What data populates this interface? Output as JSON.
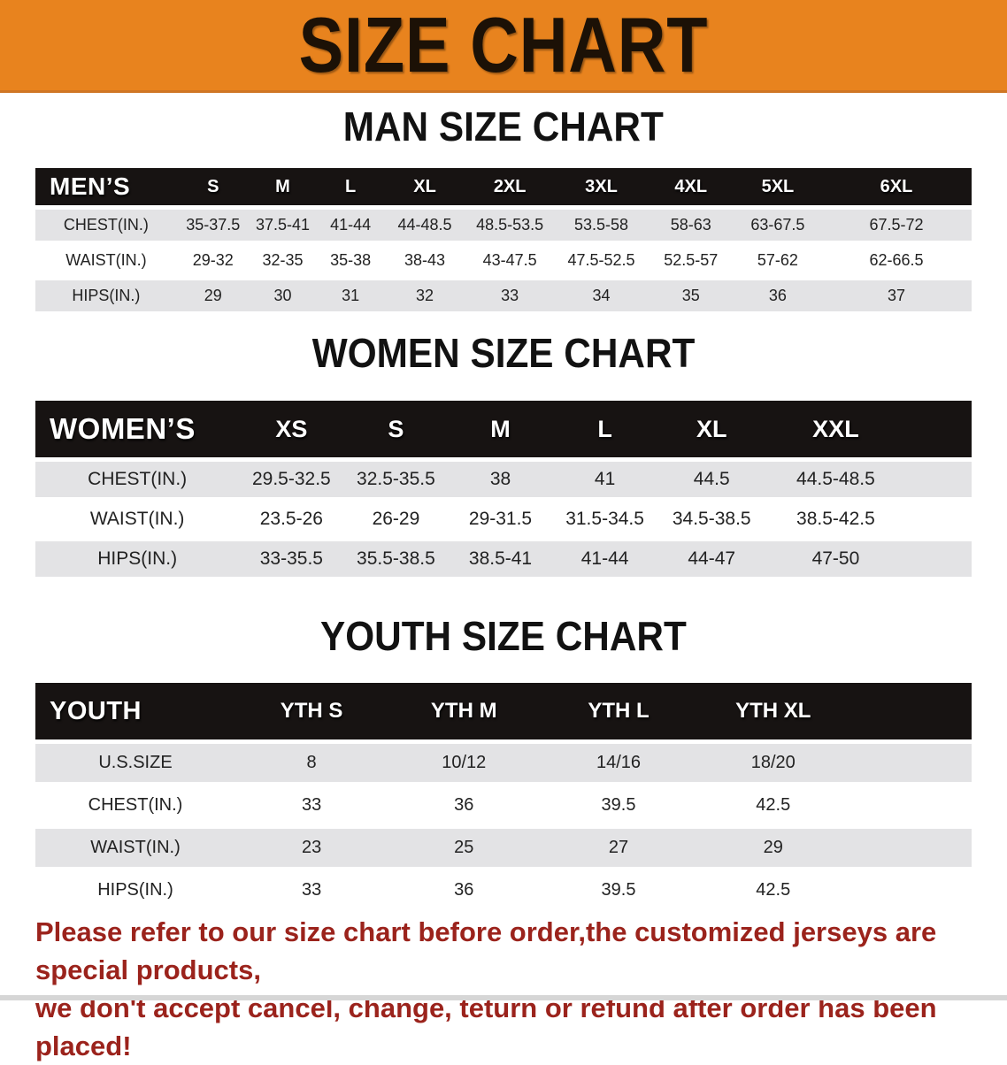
{
  "banner": {
    "title": "SIZE CHART"
  },
  "colors": {
    "banner_bg": "#E8831E",
    "banner_text": "#1C1106",
    "header_band": "#171312",
    "row_stripe": "#E3E3E5",
    "disclaimer_text": "#9B231C"
  },
  "sections": [
    {
      "title": "MAN SIZE CHART",
      "table": {
        "corner_label": "MEN’S",
        "columns": [
          "S",
          "M",
          "L",
          "XL",
          "2XL",
          "3XL",
          "4XL",
          "5XL",
          "6XL"
        ],
        "rows": [
          {
            "label": "CHEST(IN.)",
            "values": [
              "35-37.5",
              "37.5-41",
              "41-44",
              "44-48.5",
              "48.5-53.5",
              "53.5-58",
              "58-63",
              "63-67.5",
              "67.5-72"
            ]
          },
          {
            "label": "WAIST(IN.)",
            "values": [
              "29-32",
              "32-35",
              "35-38",
              "38-43",
              "43-47.5",
              "47.5-52.5",
              "52.5-57",
              "57-62",
              "62-66.5"
            ]
          },
          {
            "label": "HIPS(IN.)",
            "values": [
              "29",
              "30",
              "31",
              "32",
              "33",
              "34",
              "35",
              "36",
              "37"
            ]
          }
        ]
      }
    },
    {
      "title": "WOMEN SIZE CHART",
      "table": {
        "corner_label": "WOMEN’S",
        "columns": [
          "XS",
          "S",
          "M",
          "L",
          "XL",
          "XXL"
        ],
        "rows": [
          {
            "label": "CHEST(IN.)",
            "values": [
              "29.5-32.5",
              "32.5-35.5",
              "38",
              "41",
              "44.5",
              "44.5-48.5"
            ]
          },
          {
            "label": "WAIST(IN.)",
            "values": [
              "23.5-26",
              "26-29",
              "29-31.5",
              "31.5-34.5",
              "34.5-38.5",
              "38.5-42.5"
            ]
          },
          {
            "label": "HIPS(IN.)",
            "values": [
              "33-35.5",
              "35.5-38.5",
              "38.5-41",
              "41-44",
              "44-47",
              "47-50"
            ]
          }
        ]
      }
    },
    {
      "title": "YOUTH SIZE CHART",
      "table": {
        "corner_label": "YOUTH",
        "columns": [
          "YTH S",
          "YTH M",
          "YTH L",
          "YTH XL"
        ],
        "rows": [
          {
            "label": "U.S.SIZE",
            "values": [
              "8",
              "10/12",
              "14/16",
              "18/20"
            ]
          },
          {
            "label": "CHEST(IN.)",
            "values": [
              "33",
              "36",
              "39.5",
              "42.5"
            ]
          },
          {
            "label": "WAIST(IN.)",
            "values": [
              "23",
              "25",
              "27",
              "29"
            ]
          },
          {
            "label": "HIPS(IN.)",
            "values": [
              "33",
              "36",
              "39.5",
              "42.5"
            ]
          }
        ]
      }
    }
  ],
  "disclaimer": {
    "line1": "Please refer to our size chart before order,the customized jerseys are special products,",
    "line2": "we don't accept cancel, change, teturn or refund after order has been placed!"
  }
}
